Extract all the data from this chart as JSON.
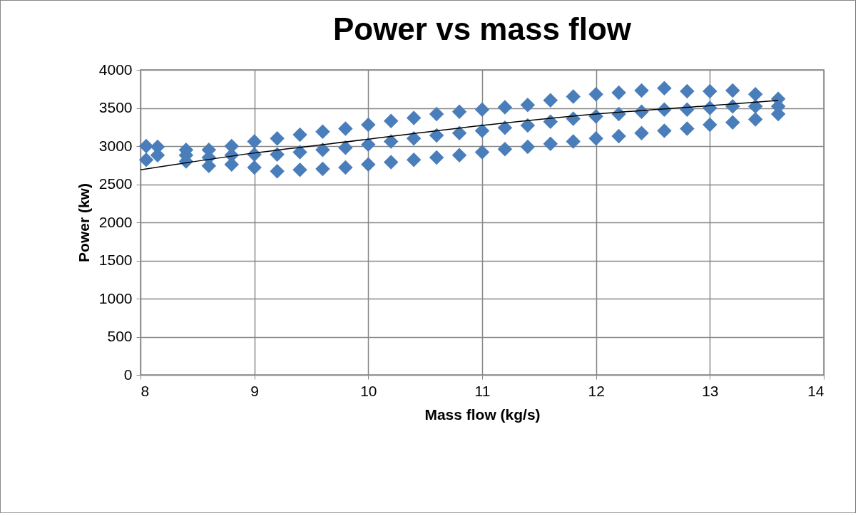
{
  "chart_data": {
    "type": "scatter",
    "title": "Power vs mass flow",
    "xlabel": "Mass flow (kg/s)",
    "ylabel": "Power (kw)",
    "xlim": [
      8,
      14
    ],
    "xticks": [
      8,
      9,
      10,
      11,
      12,
      13,
      14
    ],
    "ylim": [
      0,
      4000
    ],
    "yticks": [
      0,
      500,
      1000,
      1500,
      2000,
      2500,
      3000,
      3500,
      4000
    ],
    "grid": true,
    "series": [
      {
        "color": "#4a7ebb",
        "marker": "diamond",
        "x": [
          8.05,
          8.15,
          8.4,
          8.6,
          8.8,
          9.0,
          9.2,
          9.4,
          9.6,
          9.8,
          10.0,
          10.2,
          10.4,
          10.6,
          10.8,
          11.0,
          11.2,
          11.4,
          11.6,
          11.8,
          12.0,
          12.2,
          12.4,
          12.6,
          12.8,
          13.0,
          13.2,
          13.4,
          13.6,
          8.05,
          8.15,
          8.4,
          8.6,
          8.8,
          9.0,
          9.2,
          9.4,
          9.6,
          9.8,
          10.0,
          10.2,
          10.4,
          10.6,
          10.8,
          11.0,
          11.2,
          11.4,
          11.6,
          11.8,
          12.0,
          12.2,
          12.4,
          12.6,
          12.8,
          13.0,
          13.2,
          13.4,
          13.6,
          8.4,
          8.6,
          8.8,
          9.0,
          9.2,
          9.4,
          9.6,
          9.8,
          10.0,
          10.2,
          10.4,
          10.6,
          10.8,
          11.0,
          11.2,
          11.4,
          11.6,
          11.8,
          12.0,
          12.2,
          12.4,
          12.6,
          12.8,
          13.0,
          13.2,
          13.4,
          13.6
        ],
        "values": [
          3000,
          2990,
          2950,
          2950,
          3000,
          3060,
          3100,
          3150,
          3190,
          3230,
          3280,
          3330,
          3370,
          3420,
          3450,
          3480,
          3510,
          3540,
          3600,
          3650,
          3680,
          3700,
          3730,
          3760,
          3720,
          3720,
          3730,
          3680,
          3620,
          2820,
          2880,
          2800,
          2740,
          2760,
          2720,
          2670,
          2690,
          2700,
          2720,
          2760,
          2790,
          2820,
          2850,
          2880,
          2920,
          2960,
          2990,
          3030,
          3060,
          3100,
          3130,
          3170,
          3200,
          3230,
          3280,
          3310,
          3350,
          3420,
          2880,
          2850,
          2880,
          2890,
          2890,
          2920,
          2950,
          2980,
          3020,
          3060,
          3100,
          3140,
          3170,
          3200,
          3240,
          3270,
          3320,
          3360,
          3390,
          3420,
          3450,
          3480,
          3480,
          3500,
          3520,
          3520,
          3520
        ]
      },
      {
        "type": "line",
        "color": "#000000",
        "x": [
          8,
          9,
          10,
          11,
          12,
          13,
          13.6
        ],
        "values": [
          2690,
          2910,
          3090,
          3270,
          3420,
          3530,
          3600
        ]
      }
    ]
  }
}
